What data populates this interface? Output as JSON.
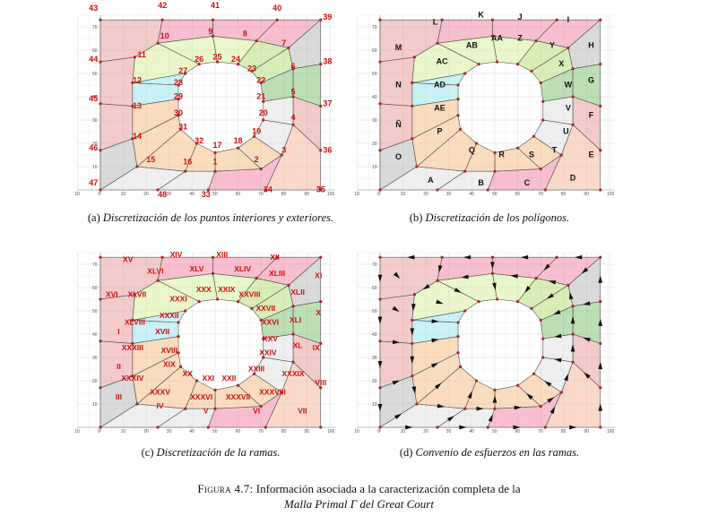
{
  "panels": [
    {
      "id": "a",
      "label_type": "points",
      "caption_letter": "(a)",
      "caption_text": "Discretización de los puntos interiores y exteriores."
    },
    {
      "id": "b",
      "label_type": "polygons",
      "caption_letter": "(b)",
      "caption_text": "Discretización de los polígonos."
    },
    {
      "id": "c",
      "label_type": "branches",
      "caption_letter": "(c)",
      "caption_text": "Discretización de la ramas."
    },
    {
      "id": "d",
      "label_type": "arrows",
      "caption_letter": "(d)",
      "caption_text": "Convenio de esfuerzos en las ramas."
    }
  ],
  "axis": {
    "x_ticks": [
      "10",
      "0",
      "10",
      "20",
      "30",
      "40",
      "50",
      "60",
      "70",
      "80",
      "90",
      "100"
    ],
    "y_ticks": [
      "70",
      "60",
      "50",
      "40",
      "30",
      "20",
      "10"
    ]
  },
  "point_labels": [
    {
      "t": "1",
      "x": 50,
      "y": 11
    },
    {
      "t": "2",
      "x": 68,
      "y": 12
    },
    {
      "t": "3",
      "x": 80,
      "y": 16
    },
    {
      "t": "4",
      "x": 84,
      "y": 30
    },
    {
      "t": "5",
      "x": 84,
      "y": 41
    },
    {
      "t": "6",
      "x": 84,
      "y": 52
    },
    {
      "t": "7",
      "x": 80,
      "y": 62
    },
    {
      "t": "8",
      "x": 63,
      "y": 66
    },
    {
      "t": "9",
      "x": 48,
      "y": 67
    },
    {
      "t": "10",
      "x": 28,
      "y": 65
    },
    {
      "t": "11",
      "x": 18,
      "y": 57
    },
    {
      "t": "12",
      "x": 16,
      "y": 46
    },
    {
      "t": "13",
      "x": 16,
      "y": 35
    },
    {
      "t": "14",
      "x": 16,
      "y": 22
    },
    {
      "t": "15",
      "x": 22,
      "y": 12
    },
    {
      "t": "16",
      "x": 38,
      "y": 11
    },
    {
      "t": "17",
      "x": 51,
      "y": 18
    },
    {
      "t": "18",
      "x": 60,
      "y": 20
    },
    {
      "t": "19",
      "x": 68,
      "y": 24
    },
    {
      "t": "20",
      "x": 71,
      "y": 32
    },
    {
      "t": "21",
      "x": 70,
      "y": 39
    },
    {
      "t": "22",
      "x": 70,
      "y": 46
    },
    {
      "t": "23",
      "x": 66,
      "y": 51
    },
    {
      "t": "24",
      "x": 59,
      "y": 55
    },
    {
      "t": "25",
      "x": 51,
      "y": 56
    },
    {
      "t": "26",
      "x": 43,
      "y": 55
    },
    {
      "t": "27",
      "x": 36,
      "y": 50
    },
    {
      "t": "28",
      "x": 34,
      "y": 45
    },
    {
      "t": "29",
      "x": 34,
      "y": 39
    },
    {
      "t": "30",
      "x": 34,
      "y": 32
    },
    {
      "t": "31",
      "x": 36,
      "y": 26
    },
    {
      "t": "32",
      "x": 43,
      "y": 20
    },
    {
      "t": "33",
      "x": 46,
      "y": -3
    },
    {
      "t": "34",
      "x": 73,
      "y": -1
    },
    {
      "t": "35",
      "x": 96,
      "y": -1
    },
    {
      "t": "36",
      "x": 99,
      "y": 16
    },
    {
      "t": "37",
      "x": 99,
      "y": 36
    },
    {
      "t": "38",
      "x": 99,
      "y": 54
    },
    {
      "t": "39",
      "x": 99,
      "y": 73
    },
    {
      "t": "40",
      "x": 77,
      "y": 77
    },
    {
      "t": "41",
      "x": 50,
      "y": 78
    },
    {
      "t": "42",
      "x": 27,
      "y": 78
    },
    {
      "t": "43",
      "x": -3,
      "y": 77
    },
    {
      "t": "44",
      "x": -3,
      "y": 55
    },
    {
      "t": "45",
      "x": -3,
      "y": 38
    },
    {
      "t": "46",
      "x": -3,
      "y": 17
    },
    {
      "t": "47",
      "x": -3,
      "y": 2
    },
    {
      "t": "48",
      "x": 27,
      "y": -3
    }
  ],
  "polygon_labels": [
    {
      "t": "A",
      "x": 22,
      "y": 3
    },
    {
      "t": "B",
      "x": 44,
      "y": 2
    },
    {
      "t": "C",
      "x": 64,
      "y": 2
    },
    {
      "t": "D",
      "x": 84,
      "y": 4
    },
    {
      "t": "E",
      "x": 92,
      "y": 14
    },
    {
      "t": "F",
      "x": 92,
      "y": 31
    },
    {
      "t": "G",
      "x": 92,
      "y": 46
    },
    {
      "t": "H",
      "x": 92,
      "y": 61
    },
    {
      "t": "I",
      "x": 82,
      "y": 72
    },
    {
      "t": "J",
      "x": 61,
      "y": 73
    },
    {
      "t": "K",
      "x": 44,
      "y": 74
    },
    {
      "t": "L",
      "x": 24,
      "y": 71
    },
    {
      "t": "M",
      "x": 8,
      "y": 60
    },
    {
      "t": "N",
      "x": 8,
      "y": 44
    },
    {
      "t": "Ñ",
      "x": 8,
      "y": 27
    },
    {
      "t": "O",
      "x": 8,
      "y": 13
    },
    {
      "t": "P",
      "x": 26,
      "y": 24
    },
    {
      "t": "Q",
      "x": 40,
      "y": 16
    },
    {
      "t": "R",
      "x": 53,
      "y": 14
    },
    {
      "t": "S",
      "x": 66,
      "y": 14
    },
    {
      "t": "T",
      "x": 76,
      "y": 16
    },
    {
      "t": "U",
      "x": 81,
      "y": 24
    },
    {
      "t": "V",
      "x": 82,
      "y": 34
    },
    {
      "t": "W",
      "x": 82,
      "y": 44
    },
    {
      "t": "X",
      "x": 79,
      "y": 53
    },
    {
      "t": "Y",
      "x": 75,
      "y": 61
    },
    {
      "t": "Z",
      "x": 61,
      "y": 64
    },
    {
      "t": "AA",
      "x": 51,
      "y": 64
    },
    {
      "t": "AB",
      "x": 40,
      "y": 61
    },
    {
      "t": "AC",
      "x": 27,
      "y": 54
    },
    {
      "t": "AD",
      "x": 26,
      "y": 44
    },
    {
      "t": "AE",
      "x": 26,
      "y": 34
    }
  ],
  "branch_labels": [
    {
      "t": "I",
      "x": 8,
      "y": 40
    },
    {
      "t": "II",
      "x": 8,
      "y": 25
    },
    {
      "t": "III",
      "x": 8,
      "y": 12
    },
    {
      "t": "IV",
      "x": 26,
      "y": 8
    },
    {
      "t": "V",
      "x": 46,
      "y": 6
    },
    {
      "t": "VI",
      "x": 68,
      "y": 6
    },
    {
      "t": "VII",
      "x": 88,
      "y": 6
    },
    {
      "t": "VIII",
      "x": 96,
      "y": 18
    },
    {
      "t": "IX",
      "x": 94,
      "y": 33
    },
    {
      "t": "X",
      "x": 95,
      "y": 48
    },
    {
      "t": "XI",
      "x": 95,
      "y": 64
    },
    {
      "t": "XII",
      "x": 76,
      "y": 72
    },
    {
      "t": "XIII",
      "x": 53,
      "y": 73
    },
    {
      "t": "XIV",
      "x": 33,
      "y": 73
    },
    {
      "t": "XV",
      "x": 12,
      "y": 71
    },
    {
      "t": "XVI",
      "x": 5,
      "y": 56
    },
    {
      "t": "XVII",
      "x": 27,
      "y": 40
    },
    {
      "t": "XVIII",
      "x": 30,
      "y": 32
    },
    {
      "t": "XIX",
      "x": 30,
      "y": 26
    },
    {
      "t": "XX",
      "x": 38,
      "y": 22
    },
    {
      "t": "XXI",
      "x": 47,
      "y": 20
    },
    {
      "t": "XXII",
      "x": 56,
      "y": 20
    },
    {
      "t": "XXIII",
      "x": 68,
      "y": 24
    },
    {
      "t": "XXIV",
      "x": 73,
      "y": 31
    },
    {
      "t": "XXV",
      "x": 74,
      "y": 37
    },
    {
      "t": "XXVI",
      "x": 74,
      "y": 44
    },
    {
      "t": "XXVII",
      "x": 72,
      "y": 50
    },
    {
      "t": "XXVIII",
      "x": 65,
      "y": 56
    },
    {
      "t": "XXIX",
      "x": 55,
      "y": 58
    },
    {
      "t": "XXX",
      "x": 45,
      "y": 58
    },
    {
      "t": "XXXI",
      "x": 34,
      "y": 54
    },
    {
      "t": "XXXII",
      "x": 30,
      "y": 47
    },
    {
      "t": "XXXIII",
      "x": 14,
      "y": 33
    },
    {
      "t": "XXXIV",
      "x": 14,
      "y": 20
    },
    {
      "t": "XXXV",
      "x": 26,
      "y": 14
    },
    {
      "t": "XXXVI",
      "x": 44,
      "y": 12
    },
    {
      "t": "XXXVII",
      "x": 60,
      "y": 12
    },
    {
      "t": "XXXVIII",
      "x": 75,
      "y": 14
    },
    {
      "t": "XXXIX",
      "x": 84,
      "y": 22
    },
    {
      "t": "XL",
      "x": 86,
      "y": 34
    },
    {
      "t": "XLI",
      "x": 85,
      "y": 45
    },
    {
      "t": "XLII",
      "x": 86,
      "y": 57
    },
    {
      "t": "XLIII",
      "x": 77,
      "y": 65
    },
    {
      "t": "XLIV",
      "x": 62,
      "y": 67
    },
    {
      "t": "XLV",
      "x": 42,
      "y": 67
    },
    {
      "t": "XLVI",
      "x": 24,
      "y": 66
    },
    {
      "t": "XLVII",
      "x": 16,
      "y": 56
    },
    {
      "t": "XLVIII",
      "x": 15,
      "y": 44
    }
  ],
  "colors": {
    "pink": "#f08aa8",
    "red": "#e9a0a0",
    "green": "#b9e07a",
    "lime": "#d9f0a0",
    "cyan": "#9ee8ee",
    "orange": "#f5c089",
    "grey": "#bcbcbc",
    "lightgrey": "#e2e2e2",
    "salmon": "#f6b9a0",
    "darkgreen": "#86c47a"
  },
  "figure_caption": {
    "prefix": "Figura 4.7:",
    "line1": "Información asociada a la caracterización completa de la",
    "line2": "Malla Primal Γ del Great Court"
  }
}
